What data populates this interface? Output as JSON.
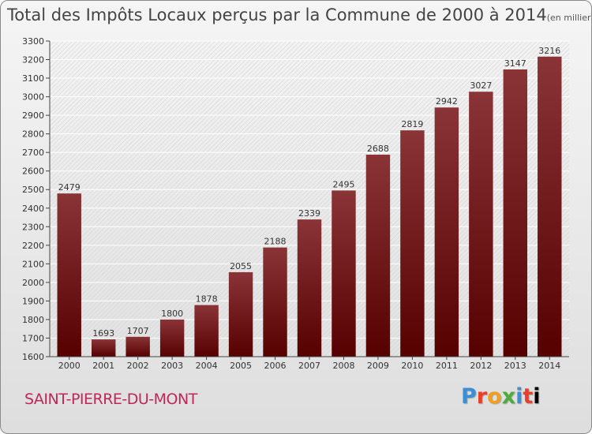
{
  "header": {
    "title": "Total des Impôts Locaux perçus par la Commune de 2000 à 2014",
    "unit": "(en milliers d'€)"
  },
  "commune": "SAINT-PIERRE-DU-MONT",
  "logo": {
    "letters": [
      "P",
      "r",
      "o",
      "x",
      "i",
      "t",
      "i"
    ]
  },
  "colors": {
    "bar_top": "#8a3438",
    "bar_bottom": "#560000",
    "commune_text": "#c0265a"
  },
  "chart_data": {
    "type": "bar",
    "title": "Total des Impôts Locaux perçus par la Commune de 2000 à 2014",
    "xlabel": "",
    "ylabel": "(en milliers d'€)",
    "categories": [
      "2000",
      "2001",
      "2002",
      "2003",
      "2004",
      "2005",
      "2006",
      "2007",
      "2008",
      "2009",
      "2010",
      "2011",
      "2012",
      "2013",
      "2014"
    ],
    "values": [
      2479,
      1693,
      1707,
      1800,
      1878,
      2055,
      2188,
      2339,
      2495,
      2688,
      2819,
      2942,
      3027,
      3147,
      3216
    ],
    "ylim": [
      1600,
      3300
    ],
    "yticks": [
      1600,
      1700,
      1800,
      1900,
      2000,
      2100,
      2200,
      2300,
      2400,
      2500,
      2600,
      2700,
      2800,
      2900,
      3000,
      3100,
      3200,
      3300
    ],
    "grid": true
  }
}
